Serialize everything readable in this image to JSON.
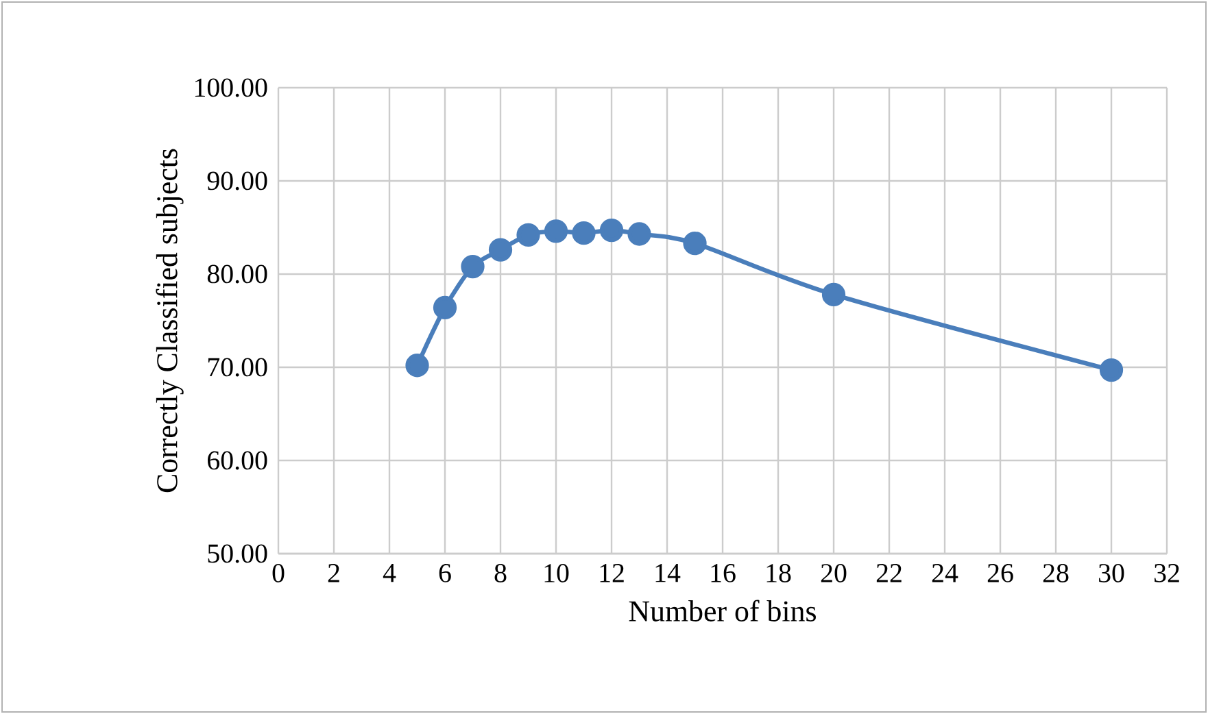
{
  "chart_data": {
    "type": "line",
    "xlabel": "Number of bins",
    "ylabel": "Correctly Classified subjects",
    "series": [
      {
        "color": "#4a7ebb",
        "x": [
          5,
          6,
          7,
          8,
          9,
          10,
          11,
          12,
          13,
          15,
          20,
          30
        ],
        "values": [
          70.2,
          76.4,
          80.8,
          82.6,
          84.2,
          84.6,
          84.4,
          84.7,
          84.3,
          83.3,
          77.8,
          69.7
        ]
      }
    ],
    "xlim": [
      0,
      32
    ],
    "xticks": [
      0,
      2,
      4,
      6,
      8,
      10,
      12,
      14,
      16,
      18,
      20,
      22,
      24,
      26,
      28,
      30,
      32
    ],
    "ylim": [
      50,
      100
    ],
    "yticks": [
      {
        "value": 50,
        "label": "50.00"
      },
      {
        "value": 60,
        "label": "60.00"
      },
      {
        "value": 70,
        "label": "70.00"
      },
      {
        "value": 80,
        "label": "80.00"
      },
      {
        "value": 90,
        "label": "90.00"
      },
      {
        "value": 100,
        "label": "100.00"
      }
    ],
    "grid": true,
    "marker": "circle",
    "line_style": "solid"
  }
}
